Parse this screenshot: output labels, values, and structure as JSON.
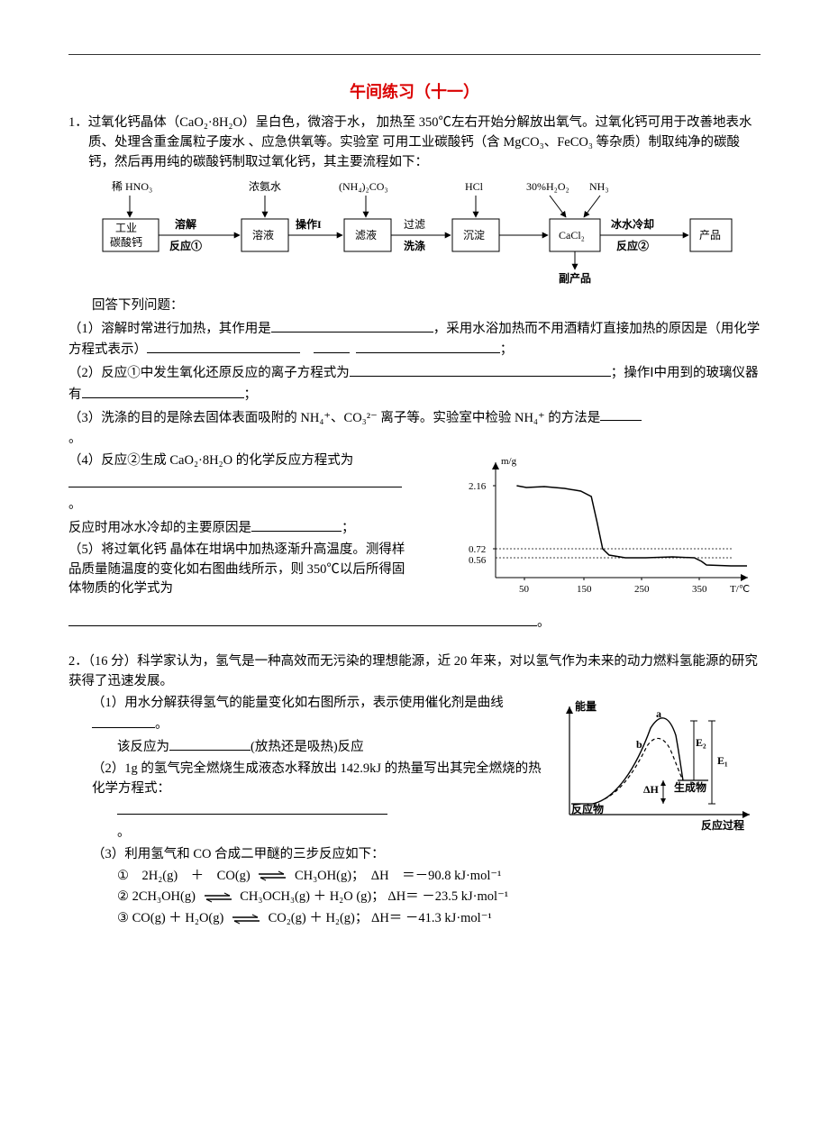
{
  "title": "午间练习（十一）",
  "q1": {
    "num": "1．",
    "intro": "过氧化钙晶体（CaO₂·8H₂O）呈白色，微溶于水， 加热至 350℃左右开始分解放出氧气。过氧化钙可用于改善地表水质、处理含重金属粒子废水 、应急供氧等。实验室 可用工业碳酸钙（含 MgCO₃、FeCO₃ 等杂质）制取纯净的碳酸钙，然后再用纯的碳酸钙制取过氧化钙，其主要流程如下：",
    "flow": {
      "boxes": [
        {
          "id": "b1",
          "label1": "工业",
          "label2": "碳酸钙"
        },
        {
          "id": "b2",
          "label1": "溶液"
        },
        {
          "id": "b3",
          "label1": "滤液"
        },
        {
          "id": "b4",
          "label1": "沉淀"
        },
        {
          "id": "b5",
          "label1": "CaCl₂"
        },
        {
          "id": "b6",
          "label1": "产品"
        }
      ],
      "tops": [
        {
          "t": "稀 HNO₃"
        },
        {
          "t": "浓氨水"
        },
        {
          "t": "(NH₄)₂CO₃"
        },
        {
          "t": "HCl"
        },
        {
          "t1": "30%H₂O₂",
          "t2": "NH₃"
        }
      ],
      "arrows": [
        {
          "t1": "溶解",
          "t2": "反应①"
        },
        {
          "t1": "操作I",
          "t2": ""
        },
        {
          "t1": "过滤",
          "t2": "洗涤"
        },
        {
          "t1": "",
          "t2": ""
        },
        {
          "t1": "冰水冷却",
          "t2": "反应②"
        }
      ],
      "bottom": "副产品"
    },
    "answer_lead": "回答下列问题：",
    "p1": "（1）溶解时常进行加热，其作用是",
    "p1b": "，采用水浴加热而不用酒精灯直接加热的原因是（用化学方程式表示）",
    "p2": "（2）反应①中发生氧化还原反应的离子方程式为",
    "p2b": "；操作Ⅰ中用到的玻璃仪器有",
    "p3a": "（3）洗涤的目的是除去固体表面吸附的 NH₄⁺、CO₃²⁻ 离子等。实验室中检验 NH₄⁺ 的方法是",
    "p4": "（4）反应②生成 CaO₂·8H₂O 的化学反应方程式为",
    "p4b": "反应时用冰水冷却的主要原因是",
    "p5": "（5）将过氧化钙 晶体在坩埚中加热逐渐升高温度。测得样品质量随温度的变化如右图曲线所示，则 350℃以后所得固体物质的化学式为",
    "chart": {
      "y_label": "m/g",
      "x_label": "T/℃",
      "y_ticks": [
        "2.16",
        "0.72",
        "0.56"
      ],
      "x_ticks": [
        "50",
        "150",
        "250",
        "350"
      ],
      "curve": [
        [
          26,
          28
        ],
        [
          38,
          30
        ],
        [
          60,
          29
        ],
        [
          85,
          31
        ],
        [
          105,
          34
        ],
        [
          118,
          40
        ],
        [
          125,
          68
        ],
        [
          132,
          98
        ],
        [
          140,
          105
        ],
        [
          160,
          108
        ],
        [
          185,
          108
        ],
        [
          218,
          107
        ],
        [
          245,
          108
        ],
        [
          254,
          112
        ],
        [
          260,
          116
        ],
        [
          290,
          117
        ],
        [
          310,
          117
        ]
      ]
    }
  },
  "q2": {
    "num": "2．",
    "intro": "（16 分）科学家认为，氢气是一种高效而无污染的理想能源，近 20 年来，对以氢气作为未来的动力燃料氢能源的研究获得了迅速发展。",
    "p1": "（1）用水分解获得氢气的能量变化如右图所示，表示使用催化剂是曲线",
    "p1b": "该反应为",
    "p1c": "(放热还是吸热)反应",
    "p2": "（2）1g 的氢气完全燃烧生成液态水释放出 142.9kJ 的热量写出其完全燃烧的热化学方程式：",
    "p3": "（3）利用氢气和 CO 合成二甲醚的三步反应如下：",
    "eq1_lhs": "①　2H₂(g)　＋　CO(g)",
    "eq1_rhs": "CH₃OH(g)；　ΔH　＝－90.8 kJ·mol⁻¹",
    "eq2_lhs": "② 2CH₃OH(g)",
    "eq2_rhs": "CH₃OCH₃(g) ＋ H₂O (g)； ΔH＝ －23.5 kJ·mol⁻¹",
    "eq3_lhs": "③ CO(g) ＋ H₂O(g)",
    "eq3_rhs": "CO₂(g) ＋ H₂(g)； ΔH＝ －41.3 kJ·mol⁻¹",
    "energy": {
      "y_label": "能量",
      "x_label": "反应过程",
      "a": "a",
      "b": "b",
      "e1": "E₁",
      "e2": "E₂",
      "dh": "ΔH",
      "prod": "生成物",
      "react": "反应物"
    }
  }
}
